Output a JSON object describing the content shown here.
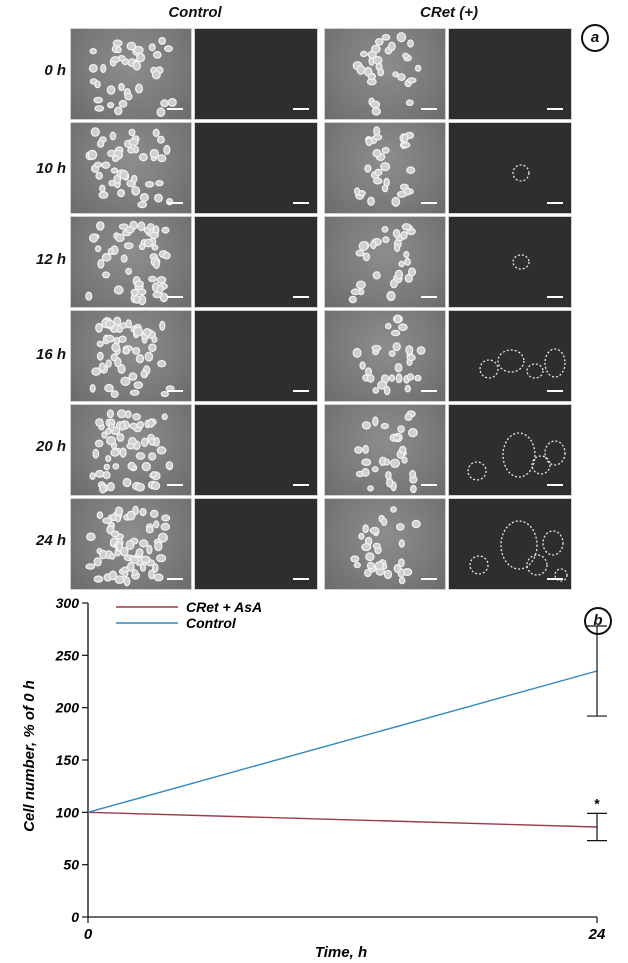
{
  "panel_a": {
    "label": "a",
    "columns": [
      "Control",
      "CRet (+)"
    ],
    "rows": [
      "0 h",
      "10 h",
      "12 h",
      "16 h",
      "20 h",
      "24 h"
    ]
  },
  "panel_b": {
    "label": "b"
  },
  "chart_data": {
    "type": "line",
    "title": "",
    "xlabel": "Time, h",
    "ylabel": "Cell number, % of 0 h",
    "xlim": [
      0,
      24
    ],
    "ylim": [
      0,
      300
    ],
    "x_ticks": [
      "0",
      "24"
    ],
    "y_ticks": [
      "0",
      "50",
      "100",
      "150",
      "200",
      "250",
      "300"
    ],
    "legend_position": "top-left",
    "grid": false,
    "series": [
      {
        "name": "CRet + AsA",
        "color": "#9b3a4a",
        "x": [
          0,
          24
        ],
        "y": [
          100,
          86
        ],
        "error": [
          0,
          13
        ],
        "annotation": "*"
      },
      {
        "name": "Control",
        "color": "#2e86c1",
        "x": [
          0,
          24
        ],
        "y": [
          100,
          235
        ],
        "error": [
          0,
          43
        ]
      }
    ]
  }
}
